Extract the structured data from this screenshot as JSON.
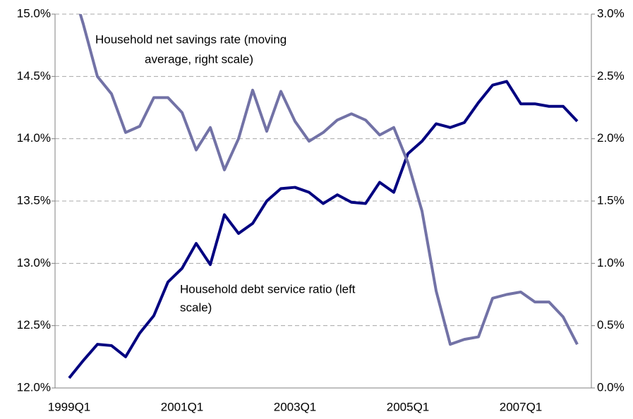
{
  "chart_data": {
    "type": "line",
    "categories": [
      "1999Q1",
      null,
      null,
      null,
      null,
      null,
      null,
      null,
      "2001Q1",
      null,
      null,
      null,
      null,
      null,
      null,
      null,
      "2003Q1",
      null,
      null,
      null,
      null,
      null,
      null,
      null,
      "2005Q1",
      null,
      null,
      null,
      null,
      null,
      null,
      null,
      "2007Q1",
      null,
      null,
      null,
      null
    ],
    "series": [
      {
        "color": "#000080",
        "values": [
          12.08,
          12.22,
          12.35,
          12.34,
          12.25,
          12.44,
          12.58,
          12.85,
          12.96,
          13.16,
          12.99,
          13.39,
          13.24,
          13.32,
          13.5,
          13.6,
          13.61,
          13.57,
          13.48,
          13.55,
          13.49,
          13.48,
          13.65,
          13.57,
          13.88,
          13.98,
          14.12,
          14.09,
          14.13,
          14.29,
          14.43,
          14.46,
          14.28,
          14.28,
          14.26,
          14.26,
          14.14
        ]
      },
      {
        "color": "#7272a6",
        "axis": "y2",
        "values": [
          3.3,
          2.92,
          2.5,
          2.36,
          2.05,
          2.1,
          2.33,
          2.33,
          2.21,
          1.91,
          2.09,
          1.75,
          2.0,
          2.39,
          2.06,
          2.38,
          2.14,
          1.98,
          2.05,
          2.15,
          2.2,
          2.15,
          2.03,
          2.09,
          1.81,
          1.42,
          0.78,
          0.35,
          0.39,
          0.41,
          0.72,
          0.75,
          0.77,
          0.69,
          0.69,
          0.57,
          0.35
        ]
      }
    ],
    "ylim": [
      12.0,
      15.0
    ],
    "yticks": [
      {
        "value": 12.0,
        "label": "12.0%"
      },
      {
        "value": 12.5,
        "label": "12.5%"
      },
      {
        "value": 13.0,
        "label": "13.0%"
      },
      {
        "value": 13.5,
        "label": "13.5%"
      },
      {
        "value": 14.0,
        "label": "14.0%"
      },
      {
        "value": 14.5,
        "label": "14.5%"
      },
      {
        "value": 15.0,
        "label": "15.0%"
      }
    ],
    "y2lim": [
      0.0,
      3.0
    ],
    "y2ticks": [
      {
        "value": 0.0,
        "label": "0.0%"
      },
      {
        "value": 0.5,
        "label": "0.5%"
      },
      {
        "value": 1.0,
        "label": "1.0%"
      },
      {
        "value": 1.5,
        "label": "1.5%"
      },
      {
        "value": 2.0,
        "label": "2.0%"
      },
      {
        "value": 2.5,
        "label": "2.5%"
      },
      {
        "value": 3.0,
        "label": "3.0%"
      }
    ],
    "grid": true,
    "annotations": [
      {
        "lines": [
          "Household net savings rate (moving",
          "average, right scale)"
        ]
      },
      {
        "lines": [
          "Household debt service ratio (left",
          "scale)"
        ]
      }
    ]
  }
}
